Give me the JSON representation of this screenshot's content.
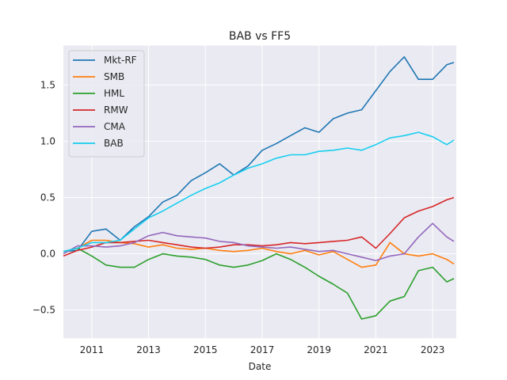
{
  "chart_data": {
    "type": "line",
    "title": "BAB vs FF5",
    "xlabel": "Date",
    "ylabel": "",
    "xlim": [
      "2010-01-01",
      "2023-11-01"
    ],
    "ylim": [
      -0.75,
      1.85
    ],
    "x_ticks": [
      "2011",
      "2013",
      "2015",
      "2017",
      "2019",
      "2021",
      "2023"
    ],
    "y_ticks": [
      "−0.5",
      "0.0",
      "0.5",
      "1.0",
      "1.5"
    ],
    "grid": true,
    "legend_position": "top-left",
    "x": [
      "2010-01",
      "2010-07",
      "2011-01",
      "2011-07",
      "2012-01",
      "2012-07",
      "2013-01",
      "2013-07",
      "2014-01",
      "2014-07",
      "2015-01",
      "2015-07",
      "2016-01",
      "2016-07",
      "2017-01",
      "2017-07",
      "2018-01",
      "2018-07",
      "2019-01",
      "2019-07",
      "2020-01",
      "2020-07",
      "2021-01",
      "2021-07",
      "2022-01",
      "2022-07",
      "2023-01",
      "2023-07",
      "2023-10"
    ],
    "series": [
      {
        "name": "Mkt-RF",
        "color": "#1f77b4",
        "values": [
          0.02,
          0.03,
          0.2,
          0.22,
          0.12,
          0.24,
          0.33,
          0.46,
          0.52,
          0.65,
          0.72,
          0.8,
          0.7,
          0.78,
          0.92,
          0.98,
          1.05,
          1.12,
          1.08,
          1.2,
          1.25,
          1.28,
          1.45,
          1.62,
          1.75,
          1.55,
          1.55,
          1.68,
          1.7
        ]
      },
      {
        "name": "SMB",
        "color": "#ff7f0e",
        "values": [
          0.02,
          0.05,
          0.12,
          0.12,
          0.1,
          0.09,
          0.06,
          0.08,
          0.05,
          0.04,
          0.05,
          0.03,
          0.02,
          0.03,
          0.05,
          0.02,
          0.0,
          0.03,
          -0.01,
          0.02,
          -0.05,
          -0.12,
          -0.1,
          0.1,
          0.0,
          -0.02,
          0.0,
          -0.05,
          -0.09
        ]
      },
      {
        "name": "HML",
        "color": "#2ca02c",
        "values": [
          0.02,
          0.05,
          -0.02,
          -0.1,
          -0.12,
          -0.12,
          -0.05,
          0.0,
          -0.02,
          -0.03,
          -0.05,
          -0.1,
          -0.12,
          -0.1,
          -0.06,
          0.0,
          -0.05,
          -0.12,
          -0.2,
          -0.27,
          -0.35,
          -0.58,
          -0.55,
          -0.42,
          -0.38,
          -0.15,
          -0.12,
          -0.25,
          -0.22
        ]
      },
      {
        "name": "RMW",
        "color": "#d62728",
        "values": [
          -0.02,
          0.03,
          0.06,
          0.1,
          0.1,
          0.11,
          0.12,
          0.1,
          0.08,
          0.06,
          0.05,
          0.06,
          0.08,
          0.08,
          0.07,
          0.08,
          0.1,
          0.09,
          0.1,
          0.11,
          0.12,
          0.15,
          0.05,
          0.18,
          0.32,
          0.38,
          0.42,
          0.48,
          0.5
        ]
      },
      {
        "name": "CMA",
        "color": "#9467bd",
        "values": [
          0.0,
          0.07,
          0.07,
          0.06,
          0.07,
          0.1,
          0.16,
          0.19,
          0.16,
          0.15,
          0.14,
          0.11,
          0.1,
          0.07,
          0.06,
          0.05,
          0.06,
          0.04,
          0.02,
          0.03,
          0.0,
          -0.03,
          -0.06,
          -0.02,
          0.0,
          0.15,
          0.27,
          0.15,
          0.11
        ]
      },
      {
        "name": "BAB",
        "color": "#17cfef",
        "values": [
          0.02,
          0.05,
          0.1,
          0.1,
          0.12,
          0.22,
          0.32,
          0.38,
          0.45,
          0.52,
          0.58,
          0.63,
          0.7,
          0.76,
          0.8,
          0.85,
          0.88,
          0.88,
          0.91,
          0.92,
          0.94,
          0.92,
          0.97,
          1.03,
          1.05,
          1.08,
          1.04,
          0.97,
          1.01
        ]
      }
    ]
  }
}
